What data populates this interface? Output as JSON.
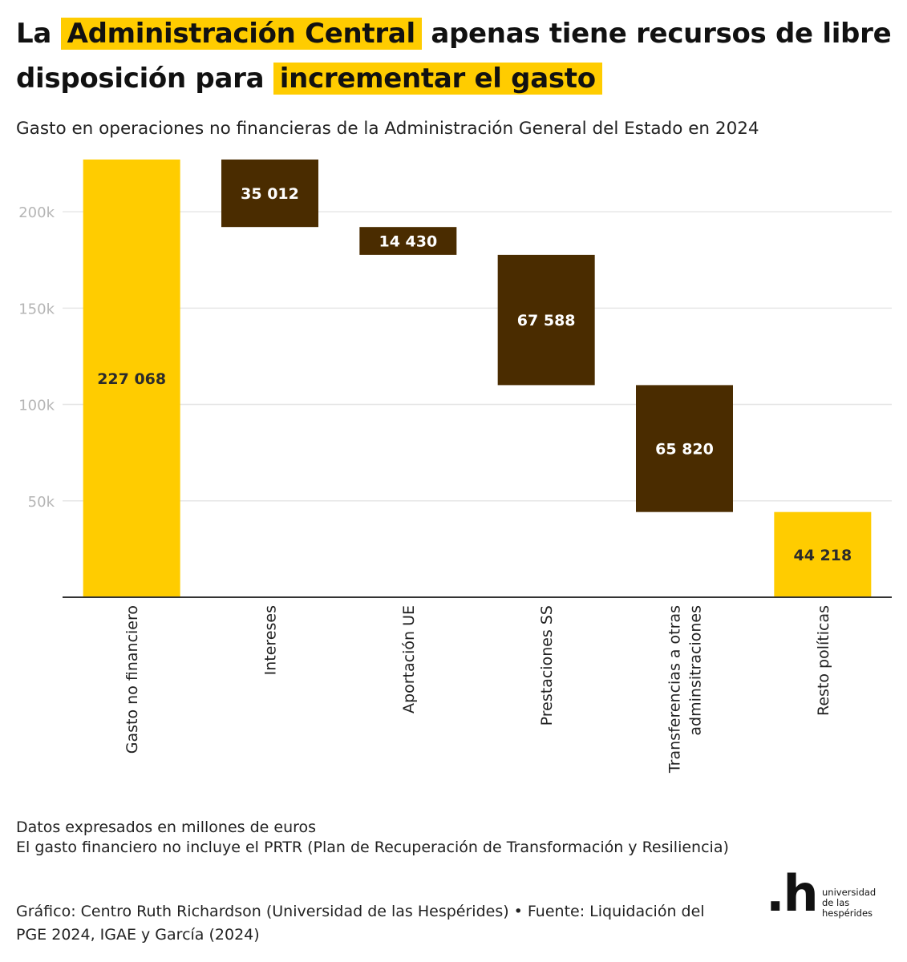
{
  "header": {
    "title_part1": "La",
    "title_highlight1": "Administración Central",
    "title_part2": "apenas tiene recursos de libre disposición para",
    "title_highlight2": "incrementar el gasto",
    "subtitle": "Gasto en operaciones no financieras de la Administración General del Estado en 2024"
  },
  "chart_data": {
    "type": "bar",
    "subtype": "waterfall",
    "categories": [
      "Gasto no financiero",
      "Intereses",
      "Aportación UE",
      "Prestaciones SS",
      "Transferencias a otras adminsitraciones",
      "Resto políticas"
    ],
    "values": [
      227068,
      35012,
      14430,
      67588,
      65820,
      44218
    ],
    "value_labels": [
      "227 068",
      "35 012",
      "14 430",
      "67 588",
      "65 820",
      "44 218"
    ],
    "bar_kind": [
      "total",
      "decrease",
      "decrease",
      "decrease",
      "decrease",
      "total"
    ],
    "y_ticks": [
      50000,
      100000,
      150000,
      200000
    ],
    "y_tick_labels": [
      "50k",
      "100k",
      "150k",
      "200k"
    ],
    "ylim": [
      0,
      227068
    ],
    "grid": true,
    "legend": "none",
    "colors": {
      "total": "#ffcc00",
      "decrease": "#4a2c00",
      "grid": "#e6e6e6",
      "axis": "#333333",
      "tick_text": "#b5b5b5"
    }
  },
  "notes": {
    "units": "Datos expresados en millones de euros",
    "prtr": "El gasto financiero no incluye el PRTR (Plan de Recuperación de Transformación y Resiliencia)"
  },
  "credit": "Gráfico: Centro Ruth Richardson (Universidad de las Hespérides) • Fuente: Liquidación del PGE 2024, IGAE y García (2024)",
  "logo": {
    "mark": ".h",
    "line1": "universidad",
    "line2": "de las",
    "line3": "hespérides"
  }
}
